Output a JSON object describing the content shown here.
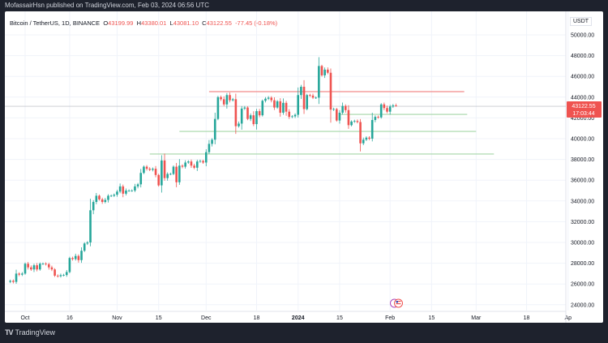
{
  "header": {
    "published": "MofassairHsn published on TradingView.com, Feb 03, 2024 06:56 UTC"
  },
  "legend": {
    "symbol": "Bitcoin / TetherUS, 1D, BINANCE",
    "o_label": "O",
    "o": "43199.99",
    "h_label": "H",
    "h": "43380.01",
    "l_label": "L",
    "l": "43081.10",
    "c_label": "C",
    "c": "43122.55",
    "change": "-77.45 (-0.18%)"
  },
  "price_axis": {
    "unit": "USDT",
    "last_price": "43122.55",
    "countdown": "17:03:44"
  },
  "footer": {
    "logo_text": "TradingView"
  },
  "colors": {
    "up": "#26a69a",
    "down": "#ef5350",
    "resistance": "#f28b8b",
    "support": "#a5d6a7",
    "last_price_bg": "#ef5350"
  },
  "icons": [
    "event-icon",
    "us-flag-icon"
  ],
  "chart_data": {
    "type": "candlestick",
    "start_date": "2023-09-26",
    "interval": "1D",
    "closes": [
      26300,
      26200,
      27000,
      26900,
      27000,
      27950,
      27600,
      27400,
      27800,
      27400,
      27950,
      27950,
      27900,
      27600,
      27400,
      26800,
      26750,
      26850,
      26860,
      27150,
      28500,
      28400,
      28700,
      28300,
      29200,
      29900,
      30000,
      33100,
      33900,
      34500,
      34150,
      33900,
      34100,
      34500,
      34500,
      34600,
      34900,
      35400,
      34700,
      35000,
      35000,
      35000,
      35400,
      35600,
      36700,
      37300,
      37100,
      37000,
      37100,
      36500,
      35500,
      37900,
      36200,
      36600,
      36600,
      37300,
      35800,
      37400,
      37300,
      37700,
      37800,
      37400,
      37200,
      37800,
      37850,
      37700,
      38700,
      39500,
      39900,
      41900,
      44000,
      43800,
      43300,
      44200,
      43700,
      43800,
      41200,
      41450,
      42900,
      43000,
      41900,
      42250,
      41400,
      42650,
      42250,
      43650,
      43850,
      43950,
      43700,
      43000,
      43600,
      42500,
      43450,
      42600,
      42100,
      42150,
      42300,
      44200,
      45000,
      42850,
      44200,
      44150,
      43950,
      43950,
      47000,
      46100,
      46650,
      46350,
      42800,
      42850,
      41750,
      42500,
      43150,
      42750,
      41300,
      41650,
      41700,
      41600,
      39550,
      39900,
      40100,
      40000,
      41800,
      42100,
      42050,
      43300,
      42950,
      42600,
      43100,
      43199.99,
      43122.55
    ],
    "last_candle": {
      "open": 43199.99,
      "high": 43380.01,
      "low": 43081.1,
      "close": 43122.55
    },
    "ylim": [
      24000,
      50000
    ],
    "y_ticks": [
      "50000.00",
      "48000.00",
      "46000.00",
      "44000.00",
      "42000.00",
      "40000.00",
      "38000.00",
      "36000.00",
      "34000.00",
      "32000.00",
      "30000.00",
      "28000.00",
      "26000.00",
      "24000.00"
    ],
    "x_ticks": [
      {
        "date": "2023-10-01",
        "label": "Oct"
      },
      {
        "date": "2023-10-16",
        "label": "16"
      },
      {
        "date": "2023-11-01",
        "label": "Nov"
      },
      {
        "date": "2023-11-15",
        "label": "15"
      },
      {
        "date": "2023-12-01",
        "label": "Dec"
      },
      {
        "date": "2023-12-18",
        "label": "18"
      },
      {
        "date": "2024-01-01",
        "label": "2024"
      },
      {
        "date": "2024-01-15",
        "label": "15"
      },
      {
        "date": "2024-02-01",
        "label": "Feb"
      },
      {
        "date": "2024-02-15",
        "label": "15"
      },
      {
        "date": "2024-03-01",
        "label": "Mar"
      },
      {
        "date": "2024-03-18",
        "label": "18"
      },
      {
        "date": "2024-04-01",
        "label": "Ap"
      }
    ],
    "horizontal_lines": [
      {
        "kind": "resistance",
        "price": 44530,
        "from": "2023-12-02",
        "to": "2024-02-26"
      },
      {
        "kind": "support",
        "price": 42340,
        "from": "2024-01-15",
        "to": "2024-02-27"
      },
      {
        "kind": "support",
        "price": 40700,
        "from": "2023-11-22",
        "to": "2024-03-01"
      },
      {
        "kind": "support",
        "price": 38520,
        "from": "2023-11-12",
        "to": "2024-03-07"
      }
    ],
    "grid": true
  }
}
